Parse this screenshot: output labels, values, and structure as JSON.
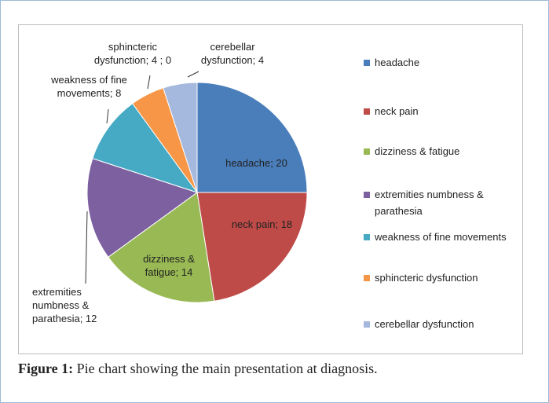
{
  "chart_data": {
    "type": "pie",
    "categories": [
      "headache",
      "neck pain",
      "dizziness & fatigue",
      "extremities numbness & parathesia",
      "weakness of fine movements",
      "sphincteric dysfunction",
      "cerebellar dysfunction"
    ],
    "values": [
      20,
      18,
      14,
      12,
      8,
      4,
      4
    ],
    "value_labels": [
      "headache; 20",
      "neck pain; 18",
      "dizziness & fatigue; 14",
      "extremities numbness & parathesia; 12",
      "weakness of fine movements; 8",
      "sphincteric dysfunction; 4 ; 0",
      "cerebellar dysfunction; 4"
    ],
    "colors": [
      "#4a7ebb",
      "#be4b48",
      "#98b954",
      "#7d60a0",
      "#46aac5",
      "#f79646",
      "#a5b8dd"
    ],
    "legend": "right"
  },
  "caption": {
    "label": "Figure 1:",
    "text": "Pie chart showing the main presentation at diagnosis."
  }
}
